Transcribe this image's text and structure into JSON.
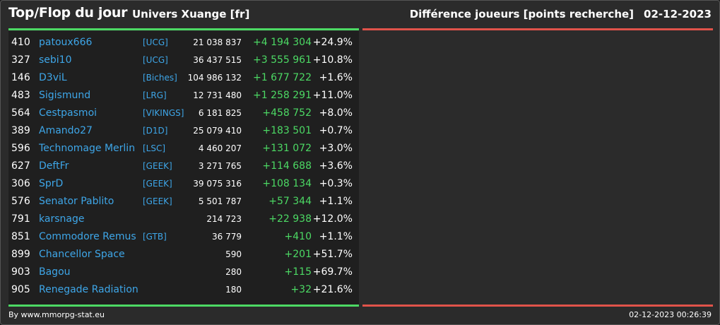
{
  "header": {
    "title": "Top/Flop du jour",
    "subtitle": "Univers Xuange [fr]",
    "right_label": "Différence joueurs [points recherche]",
    "date": "02-12-2023"
  },
  "colors": {
    "positive": "#4cd964",
    "negative": "#e0534a",
    "link": "#3ea6e8"
  },
  "rows": [
    {
      "rank": "410",
      "name": "patoux666",
      "alliance": "[UCG]",
      "points": "21 038 837",
      "diff": "+4 194 304",
      "pct": "+24.9%"
    },
    {
      "rank": "327",
      "name": "sebi10",
      "alliance": "[UCG]",
      "points": "36 437 515",
      "diff": "+3 555 961",
      "pct": "+10.8%"
    },
    {
      "rank": "146",
      "name": "D3viL",
      "alliance": "[Biches]",
      "points": "104 986 132",
      "diff": "+1 677 722",
      "pct": "+1.6%"
    },
    {
      "rank": "483",
      "name": "Sigismund",
      "alliance": "[LRG]",
      "points": "12 731 480",
      "diff": "+1 258 291",
      "pct": "+11.0%"
    },
    {
      "rank": "564",
      "name": "Cestpasmoi",
      "alliance": "[VIKINGS]",
      "points": "6 181 825",
      "diff": "+458 752",
      "pct": "+8.0%"
    },
    {
      "rank": "389",
      "name": "Amando27",
      "alliance": "[D1D]",
      "points": "25 079 410",
      "diff": "+183 501",
      "pct": "+0.7%"
    },
    {
      "rank": "596",
      "name": "Technomage Merlin",
      "alliance": "[LSC]",
      "points": "4 460 207",
      "diff": "+131 072",
      "pct": "+3.0%"
    },
    {
      "rank": "627",
      "name": "DeftFr",
      "alliance": "[GEEK]",
      "points": "3 271 765",
      "diff": "+114 688",
      "pct": "+3.6%"
    },
    {
      "rank": "306",
      "name": "SprD",
      "alliance": "[GEEK]",
      "points": "39 075 316",
      "diff": "+108 134",
      "pct": "+0.3%"
    },
    {
      "rank": "576",
      "name": "Senator Pablito",
      "alliance": "[GEEK]",
      "points": "5 501 787",
      "diff": "+57 344",
      "pct": "+1.1%"
    },
    {
      "rank": "791",
      "name": "karsnage",
      "alliance": "",
      "points": "214 723",
      "diff": "+22 938",
      "pct": "+12.0%"
    },
    {
      "rank": "851",
      "name": "Commodore Remus",
      "alliance": "[GTB]",
      "points": "36 779",
      "diff": "+410",
      "pct": "+1.1%"
    },
    {
      "rank": "899",
      "name": "Chancellor Space",
      "alliance": "",
      "points": "590",
      "diff": "+201",
      "pct": "+51.7%"
    },
    {
      "rank": "903",
      "name": "Bagou",
      "alliance": "",
      "points": "280",
      "diff": "+115",
      "pct": "+69.7%"
    },
    {
      "rank": "905",
      "name": "Renegade Radiation",
      "alliance": "",
      "points": "180",
      "diff": "+32",
      "pct": "+21.6%"
    }
  ],
  "footer": {
    "source": "By www.mmorpg-stat.eu",
    "timestamp": "02-12-2023 00:26:39"
  }
}
